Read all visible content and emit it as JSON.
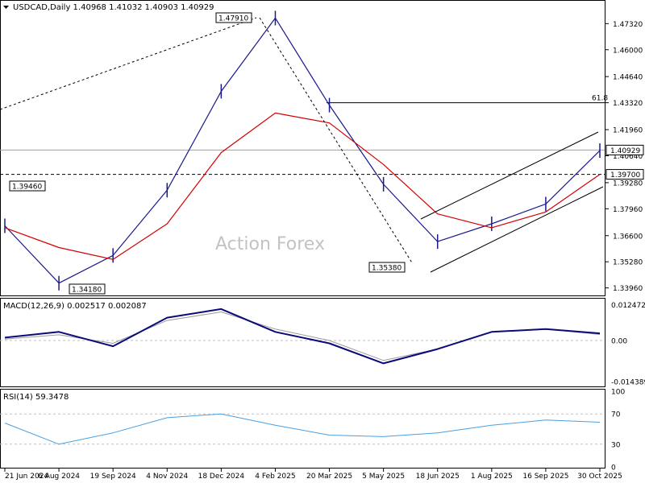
{
  "header": {
    "symbol_line": "USDCAD,Daily  1.40968 1.41032 1.40903 1.40929"
  },
  "watermark": "Action Forex",
  "colors": {
    "price": "#1a1a8c",
    "ma": "#d40000",
    "macd": "#0a0a7a",
    "signal": "#9a9a9a",
    "rsi": "#4a9fe0",
    "level": "#000000"
  },
  "chart_data": [
    {
      "type": "line",
      "title": "USDCAD,Daily",
      "ohlc_readout": {
        "open": 1.40968,
        "high": 1.41032,
        "low": 1.40903,
        "close": 1.40929
      },
      "y_ticks": [
        "1.47320",
        "1.46000",
        "1.44640",
        "1.43320",
        "1.41960",
        "1.40640",
        "1.39280",
        "1.37960",
        "1.36600",
        "1.35280",
        "1.33960"
      ],
      "x_ticks": [
        "21 Jun 2024",
        "6 Aug 2024",
        "19 Sep 2024",
        "4 Nov 2024",
        "18 Dec 2024",
        "4 Feb 2025",
        "20 Mar 2025",
        "5 May 2025",
        "18 Jun 2025",
        "1 Aug 2025",
        "16 Sep 2025",
        "30 Oct 2025"
      ],
      "ylim": [
        1.3362,
        1.4835
      ],
      "annotations": [
        {
          "label": "1.47910",
          "value": 1.4791
        },
        {
          "label": "1.39460",
          "value": 1.3946
        },
        {
          "label": "1.34180",
          "value": 1.3418
        },
        {
          "label": "1.35380",
          "value": 1.3538
        }
      ],
      "levels": [
        {
          "label": "61.8",
          "value": 1.4332,
          "style": "solid"
        },
        {
          "label": "1.40929",
          "value": 1.40929,
          "style": "current"
        },
        {
          "label": "1.39700",
          "value": 1.397,
          "style": "dashed"
        }
      ],
      "series": [
        {
          "name": "price",
          "x": [
            "21 Jun 2024",
            "6 Aug 2024",
            "19 Sep 2024",
            "4 Nov 2024",
            "18 Dec 2024",
            "4 Feb 2025",
            "20 Mar 2025",
            "5 May 2025",
            "18 Jun 2025",
            "1 Aug 2025",
            "16 Sep 2025",
            "30 Oct 2025"
          ],
          "values": [
            1.371,
            1.342,
            1.356,
            1.389,
            1.439,
            1.476,
            1.432,
            1.392,
            1.363,
            1.372,
            1.382,
            1.409
          ]
        },
        {
          "name": "moving-average",
          "x": [
            "21 Jun 2024",
            "6 Aug 2024",
            "19 Sep 2024",
            "4 Nov 2024",
            "18 Dec 2024",
            "4 Feb 2025",
            "20 Mar 2025",
            "5 May 2025",
            "18 Jun 2025",
            "1 Aug 2025",
            "16 Sep 2025",
            "30 Oct 2025"
          ],
          "values": [
            1.37,
            1.36,
            1.354,
            1.372,
            1.408,
            1.428,
            1.423,
            1.402,
            1.377,
            1.37,
            1.378,
            1.397
          ]
        }
      ]
    },
    {
      "type": "line",
      "title": "MACD(12,26,9) 0.002517 0.002087",
      "y_ticks": [
        "0.012472",
        "0.00",
        "-0.014389"
      ],
      "ylim": [
        -0.0155,
        0.0138
      ],
      "series": [
        {
          "name": "macd",
          "x": [
            "21 Jun 2024",
            "6 Aug 2024",
            "19 Sep 2024",
            "4 Nov 2024",
            "18 Dec 2024",
            "4 Feb 2025",
            "20 Mar 2025",
            "5 May 2025",
            "18 Jun 2025",
            "1 Aug 2025",
            "16 Sep 2025",
            "30 Oct 2025"
          ],
          "values": [
            0.001,
            0.003,
            -0.002,
            0.008,
            0.011,
            0.003,
            -0.001,
            -0.008,
            -0.003,
            0.003,
            0.004,
            0.0025
          ]
        },
        {
          "name": "signal",
          "x": [
            "21 Jun 2024",
            "6 Aug 2024",
            "19 Sep 2024",
            "4 Nov 2024",
            "18 Dec 2024",
            "4 Feb 2025",
            "20 Mar 2025",
            "5 May 2025",
            "18 Jun 2025",
            "1 Aug 2025",
            "16 Sep 2025",
            "30 Oct 2025"
          ],
          "values": [
            0.0005,
            0.002,
            -0.001,
            0.007,
            0.01,
            0.004,
            0.0,
            -0.007,
            -0.003,
            0.003,
            0.004,
            0.0021
          ]
        }
      ]
    },
    {
      "type": "line",
      "title": "RSI(14) 59.3478",
      "y_ticks": [
        "100",
        "70",
        "30",
        "0"
      ],
      "ylim": [
        0,
        100
      ],
      "series": [
        {
          "name": "rsi",
          "x": [
            "21 Jun 2024",
            "6 Aug 2024",
            "19 Sep 2024",
            "4 Nov 2024",
            "18 Dec 2024",
            "4 Feb 2025",
            "20 Mar 2025",
            "5 May 2025",
            "18 Jun 2025",
            "1 Aug 2025",
            "16 Sep 2025",
            "30 Oct 2025"
          ],
          "values": [
            58,
            30,
            45,
            65,
            70,
            55,
            42,
            40,
            45,
            55,
            62,
            59
          ]
        }
      ]
    }
  ]
}
